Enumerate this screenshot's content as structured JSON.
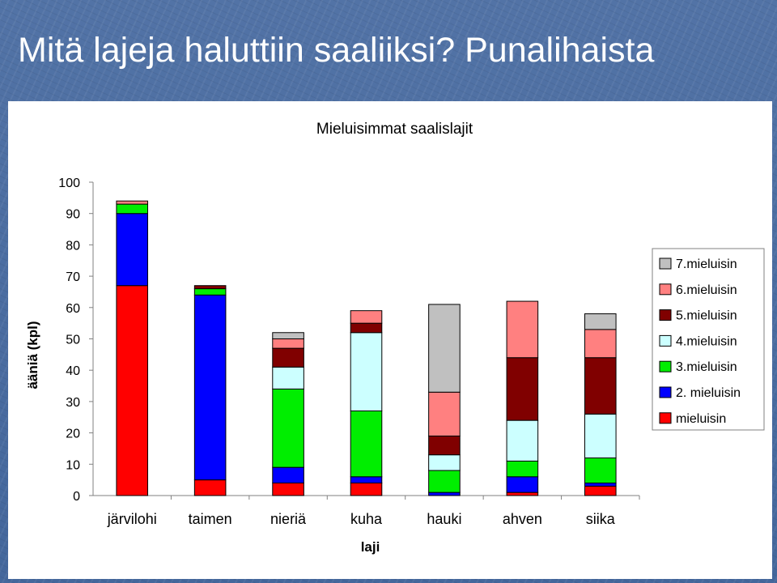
{
  "slide": {
    "title": "Mitä lajeja haluttiin saaliiksi? Punalihaista"
  },
  "chart_data": {
    "type": "bar",
    "stacked": true,
    "title": "Mieluisimmat saalislajit",
    "xlabel": "laji",
    "ylabel": "ääniä (kpl)",
    "ylim": [
      0,
      100
    ],
    "yticks": [
      0,
      10,
      20,
      30,
      40,
      50,
      60,
      70,
      80,
      90,
      100
    ],
    "grid": false,
    "legend_position": "right",
    "categories": [
      "järvilohi",
      "taimen",
      "nieriä",
      "kuha",
      "hauki",
      "ahven",
      "siika"
    ],
    "series": [
      {
        "name": "mieluisin",
        "color": "#ff0000",
        "values": [
          67,
          5,
          4,
          4,
          0,
          1,
          3
        ]
      },
      {
        "name": "2. mieluisin",
        "color": "#0000ff",
        "values": [
          23,
          59,
          5,
          2,
          1,
          5,
          1
        ]
      },
      {
        "name": "3.mieluisin",
        "color": "#00ee00",
        "values": [
          3,
          2,
          25,
          21,
          7,
          5,
          8
        ]
      },
      {
        "name": "4.mieluisin",
        "color": "#ccffff",
        "values": [
          0,
          0,
          7,
          25,
          5,
          13,
          14
        ]
      },
      {
        "name": "5.mieluisin",
        "color": "#800000",
        "values": [
          0,
          1,
          6,
          3,
          6,
          20,
          18
        ]
      },
      {
        "name": "6.mieluisin",
        "color": "#ff8080",
        "values": [
          1,
          0,
          3,
          4,
          14,
          18,
          9
        ]
      },
      {
        "name": "7.mieluisin",
        "color": "#c0c0c0",
        "values": [
          0,
          0,
          2,
          0,
          28,
          0,
          5
        ]
      }
    ]
  }
}
